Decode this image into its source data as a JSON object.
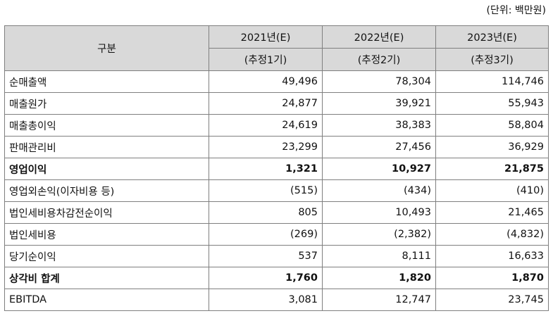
{
  "unit_note": "(단위: 백만원)",
  "header": {
    "category_label": "구분",
    "years": [
      {
        "year": "2021년(E)",
        "note": "(추정1기)"
      },
      {
        "year": "2022년(E)",
        "note": "(추정2기)"
      },
      {
        "year": "2023년(E)",
        "note": "(추정3기)"
      }
    ]
  },
  "rows": [
    {
      "label": "순매출액",
      "values": [
        "49,496",
        "78,304",
        "114,746"
      ],
      "bold": false
    },
    {
      "label": "매출원가",
      "values": [
        "24,877",
        "39,921",
        "55,943"
      ],
      "bold": false
    },
    {
      "label": "매출총이익",
      "values": [
        "24,619",
        "38,383",
        "58,804"
      ],
      "bold": false
    },
    {
      "label": "판매관리비",
      "values": [
        "23,299",
        "27,456",
        "36,929"
      ],
      "bold": false
    },
    {
      "label": "영업이익",
      "values": [
        "1,321",
        "10,927",
        "21,875"
      ],
      "bold": true
    },
    {
      "label": "영업외손익(이자비용 등)",
      "values": [
        "(515)",
        "(434)",
        "(410)"
      ],
      "bold": false
    },
    {
      "label": "법인세비용차감전순이익",
      "values": [
        "805",
        "10,493",
        "21,465"
      ],
      "bold": false
    },
    {
      "label": "법인세비용",
      "values": [
        "(269)",
        "(2,382)",
        "(4,832)"
      ],
      "bold": false
    },
    {
      "label": "당기순이익",
      "values": [
        "537",
        "8,111",
        "16,633"
      ],
      "bold": false
    },
    {
      "label": "상각비 합계",
      "values": [
        "1,760",
        "1,820",
        "1,870"
      ],
      "bold": true
    },
    {
      "label": "EBITDA",
      "values": [
        "3,081",
        "12,747",
        "23,745"
      ],
      "bold": false
    }
  ],
  "colors": {
    "header_bg": "#d9d9d9",
    "border": "#7f7f7f"
  }
}
